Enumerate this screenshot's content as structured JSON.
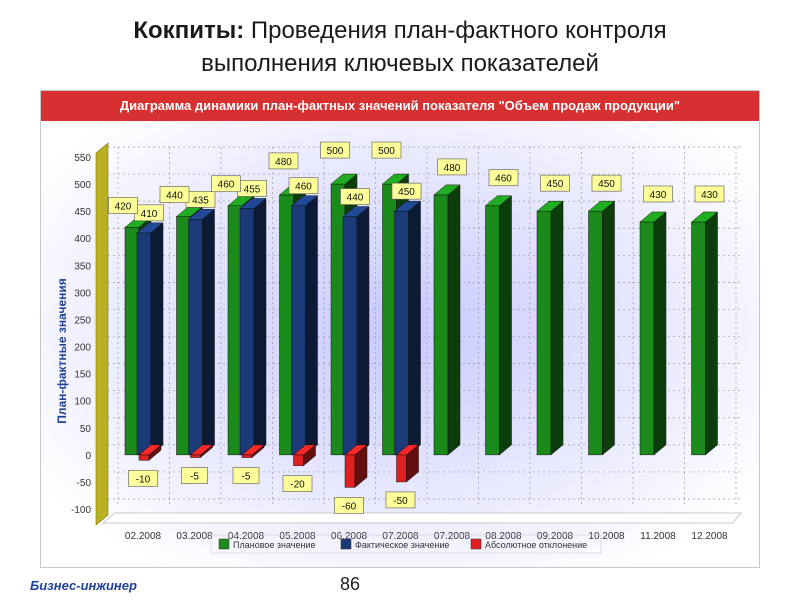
{
  "slide": {
    "title_bold": "Кокпиты:",
    "title_rest": " Проведения план-фактного контроля",
    "title_line2": "выполнения ключевых показателей",
    "footer_brand": "Бизнес-инжинер",
    "page_number": "86"
  },
  "chart_data": {
    "type": "bar",
    "title": "Диаграмма динамики план-фактных значений показателя \"Объем продаж продукции\"",
    "ylabel": "План-фактные значения",
    "xlabel": "",
    "ylim": [
      -100,
      550
    ],
    "yticks": [
      -100,
      -50,
      0,
      50,
      100,
      150,
      200,
      250,
      300,
      350,
      400,
      450,
      500,
      550
    ],
    "grid": true,
    "legend_position": "bottom",
    "categories": [
      "02.2008",
      "03.2008",
      "04.2008",
      "05.2008",
      "06.2008",
      "07.2008",
      "07.2008",
      "08.2008",
      "09.2008",
      "10.2008",
      "11.2008",
      "12.2008"
    ],
    "series": [
      {
        "name": "Плановое значение",
        "color": "#1a8a1a",
        "values": [
          420,
          440,
          460,
          480,
          500,
          500,
          480,
          460,
          450,
          450,
          430,
          430
        ],
        "labels": [
          "420",
          "440",
          "460",
          "480",
          "500",
          "500",
          "480",
          "460",
          "450",
          "450",
          "430",
          "430"
        ]
      },
      {
        "name": "Фактическое значение",
        "color": "#1a3a78",
        "values": [
          410,
          435,
          455,
          460,
          440,
          450,
          null,
          null,
          null,
          null,
          null,
          null
        ]
      },
      {
        "name": "Абсолютное отклонение",
        "color": "#e02020",
        "values": [
          -10,
          -5,
          -5,
          -20,
          -60,
          -50,
          null,
          null,
          null,
          null,
          null,
          null
        ]
      }
    ],
    "colors": {
      "header": "#d63030",
      "label_bg": "#ffff99",
      "wall": "#b8b020"
    }
  }
}
